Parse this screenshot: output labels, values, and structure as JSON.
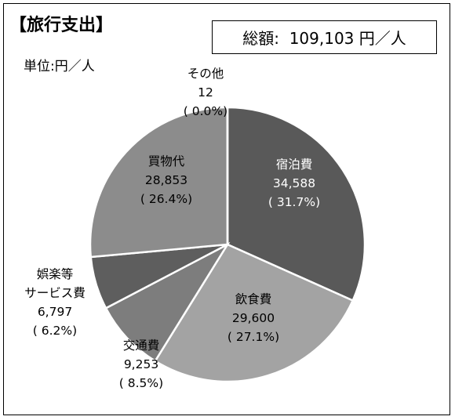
{
  "header": {
    "title": "【旅行支出】",
    "unit": "単位:円／人",
    "total_label": "総額:",
    "total_value": "109,103 円／人"
  },
  "colors": {
    "border": "#000000",
    "slice_edge": "#ffffff"
  },
  "chart_data": {
    "type": "pie",
    "title": "【旅行支出】",
    "unit": "円／人",
    "total": 109103,
    "slices": [
      {
        "label": "宿泊費",
        "value": 34588,
        "value_text": "34,588",
        "percent_text": "( 31.7%)",
        "color": "#595959"
      },
      {
        "label": "飲食費",
        "value": 29600,
        "value_text": "29,600",
        "percent_text": "( 27.1%)",
        "color": "#a3a3a3"
      },
      {
        "label": "交通費",
        "value": 9253,
        "value_text": "9,253",
        "percent_text": "( 8.5%)",
        "color": "#7d7d7d"
      },
      {
        "label": "娯楽等サービス費",
        "value": 6797,
        "value_text": "6,797",
        "percent_text": "( 6.2%)",
        "color": "#5e5e5e"
      },
      {
        "label": "買物代",
        "value": 28853,
        "value_text": "28,853",
        "percent_text": "( 26.4%)",
        "color": "#8c8c8c"
      },
      {
        "label": "その他",
        "value": 12,
        "value_text": "12",
        "percent_text": "( 0.0%)",
        "color": "#808080"
      }
    ]
  }
}
